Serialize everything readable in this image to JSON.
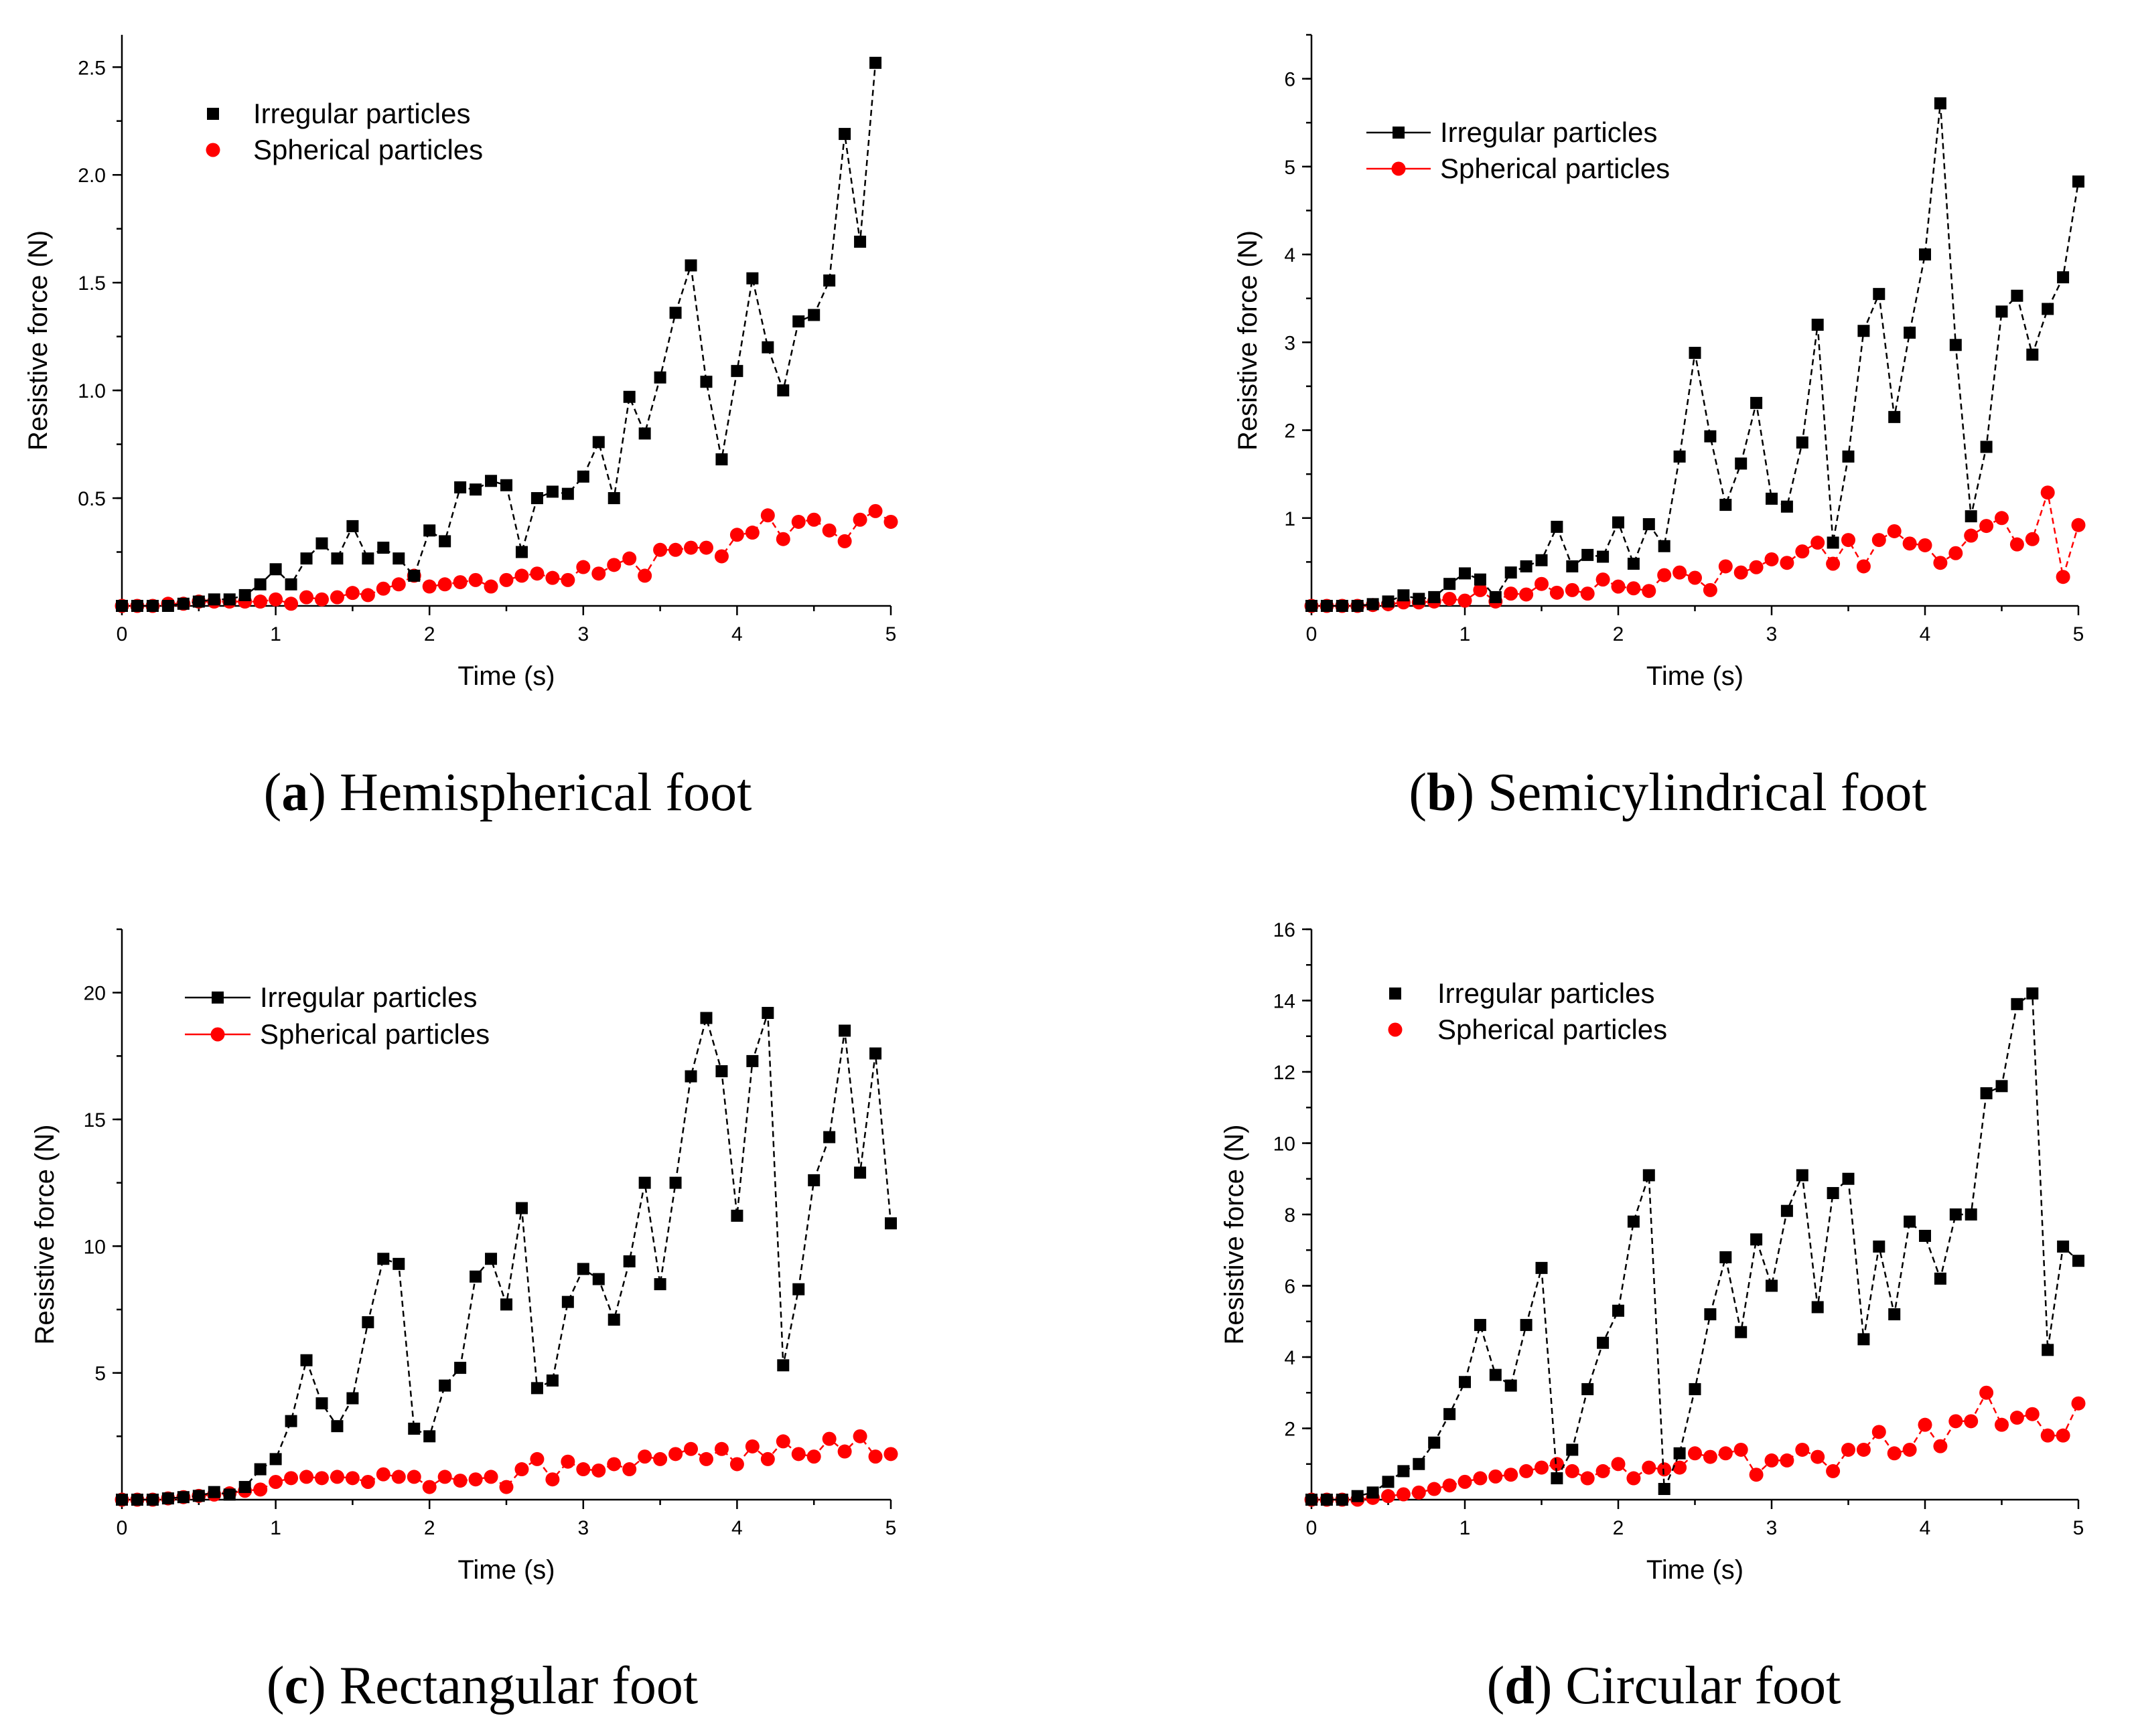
{
  "colors": {
    "irregular": "#000000",
    "spherical": "#ff0000"
  },
  "chart_data": [
    {
      "type": "line",
      "caption_letter": "a",
      "caption_rest": " Hemispherical foot",
      "title": "",
      "xlabel": "Time (s)",
      "ylabel": "Resistive force (N)",
      "xlim": [
        0,
        5
      ],
      "ylim": [
        0,
        2.65
      ],
      "xticks": [
        0,
        1,
        2,
        3,
        4,
        5
      ],
      "yticks": [
        0.5,
        1.0,
        1.5,
        2.0,
        2.5
      ],
      "yticklabels": [
        "0.5",
        "1.0",
        "1.5",
        "2.0",
        "2.5"
      ],
      "legend_position": "top-left",
      "legend_style": "marker-only",
      "x": [
        0,
        0.1,
        0.2,
        0.3,
        0.4,
        0.5,
        0.6,
        0.7,
        0.8,
        0.9,
        1.0,
        1.1,
        1.2,
        1.3,
        1.4,
        1.5,
        1.6,
        1.7,
        1.8,
        1.9,
        2.0,
        2.1,
        2.2,
        2.3,
        2.4,
        2.5,
        2.6,
        2.7,
        2.8,
        2.9,
        3.0,
        3.1,
        3.2,
        3.3,
        3.4,
        3.5,
        3.6,
        3.7,
        3.8,
        3.9,
        4.0,
        4.1,
        4.2,
        4.3,
        4.4,
        4.5,
        4.6,
        4.7,
        4.8,
        4.9,
        5.0
      ],
      "series": [
        {
          "name": "Irregular particles",
          "marker": "square",
          "color": "#000000",
          "values": [
            0,
            0,
            0,
            0,
            0.01,
            0.02,
            0.03,
            0.03,
            0.05,
            0.1,
            0.17,
            0.1,
            0.22,
            0.29,
            0.22,
            0.37,
            0.22,
            0.27,
            0.22,
            0.14,
            0.35,
            0.3,
            0.55,
            0.54,
            0.58,
            0.56,
            0.25,
            0.5,
            0.53,
            0.52,
            0.6,
            0.76,
            0.5,
            0.97,
            0.8,
            1.06,
            1.36,
            1.58,
            1.04,
            0.68,
            1.09,
            1.52,
            1.2,
            1.0,
            1.32,
            1.35,
            1.51,
            2.19,
            1.69,
            2.52,
            null
          ]
        },
        {
          "name": "Spherical particles",
          "marker": "circle",
          "color": "#ff0000",
          "values": [
            0,
            0,
            0,
            0.01,
            0.01,
            0.02,
            0.02,
            0.02,
            0.02,
            0.02,
            0.03,
            0.01,
            0.04,
            0.03,
            0.04,
            0.06,
            0.05,
            0.08,
            0.1,
            0.14,
            0.09,
            0.1,
            0.11,
            0.12,
            0.09,
            0.12,
            0.14,
            0.15,
            0.13,
            0.12,
            0.18,
            0.15,
            0.19,
            0.22,
            0.14,
            0.26,
            0.26,
            0.27,
            0.27,
            0.23,
            0.33,
            0.34,
            0.42,
            0.31,
            0.39,
            0.4,
            0.35,
            0.3,
            0.4,
            0.44,
            0.39
          ]
        }
      ]
    },
    {
      "type": "line",
      "caption_letter": "b",
      "caption_rest": " Semicylindrical foot",
      "title": "",
      "xlabel": "Time (s)",
      "ylabel": "Resistive force (N)",
      "xlim": [
        0,
        5
      ],
      "ylim": [
        0,
        6.5
      ],
      "xticks": [
        0,
        1,
        2,
        3,
        4,
        5
      ],
      "yticks": [
        1,
        2,
        3,
        4,
        5,
        6
      ],
      "yticklabels": [
        "1",
        "2",
        "3",
        "4",
        "5",
        "6"
      ],
      "legend_position": "top-left",
      "legend_style": "line-marker",
      "x": [
        0,
        0.1,
        0.2,
        0.3,
        0.4,
        0.5,
        0.6,
        0.7,
        0.8,
        0.9,
        1.0,
        1.1,
        1.2,
        1.3,
        1.4,
        1.5,
        1.6,
        1.7,
        1.8,
        1.9,
        2.0,
        2.1,
        2.2,
        2.3,
        2.4,
        2.5,
        2.6,
        2.7,
        2.8,
        2.9,
        3.0,
        3.1,
        3.2,
        3.3,
        3.4,
        3.5,
        3.6,
        3.7,
        3.8,
        3.9,
        4.0,
        4.1,
        4.2,
        4.3,
        4.4,
        4.5,
        4.6,
        4.7,
        4.8,
        4.9,
        5.0
      ],
      "series": [
        {
          "name": "Irregular particles",
          "marker": "square",
          "color": "#000000",
          "values": [
            0,
            0,
            0,
            0,
            0.02,
            0.05,
            0.12,
            0.08,
            0.1,
            0.25,
            0.37,
            0.3,
            0.1,
            0.38,
            0.45,
            0.52,
            0.9,
            0.45,
            0.58,
            0.56,
            0.95,
            0.48,
            0.93,
            0.68,
            1.7,
            2.88,
            1.93,
            1.15,
            1.62,
            2.31,
            1.22,
            1.13,
            1.86,
            3.2,
            0.72,
            1.7,
            3.13,
            3.55,
            2.15,
            3.11,
            4.0,
            5.72,
            2.97,
            1.02,
            1.81,
            3.35,
            3.53,
            2.86,
            3.38,
            3.74,
            4.83
          ]
        },
        {
          "name": "Spherical particles",
          "marker": "circle",
          "color": "#ff0000",
          "values": [
            0,
            0,
            0,
            0,
            0.01,
            0.02,
            0.04,
            0.04,
            0.05,
            0.08,
            0.06,
            0.18,
            0.05,
            0.14,
            0.13,
            0.25,
            0.15,
            0.18,
            0.14,
            0.3,
            0.22,
            0.2,
            0.17,
            0.35,
            0.38,
            0.32,
            0.18,
            0.45,
            0.38,
            0.44,
            0.53,
            0.49,
            0.62,
            0.72,
            0.48,
            0.75,
            0.45,
            0.75,
            0.85,
            0.71,
            0.69,
            0.49,
            0.6,
            0.8,
            0.91,
            1.0,
            0.7,
            0.76,
            1.29,
            0.33,
            0.92
          ]
        }
      ]
    },
    {
      "type": "line",
      "caption_letter": "c",
      "caption_rest": " Rectangular foot",
      "title": "",
      "xlabel": "Time (s)",
      "ylabel": "Resistive force (N)",
      "xlim": [
        0,
        5
      ],
      "ylim": [
        0,
        22.5
      ],
      "xticks": [
        0,
        1,
        2,
        3,
        4,
        5
      ],
      "yticks": [
        5,
        10,
        15,
        20
      ],
      "yticklabels": [
        "5",
        "10",
        "15",
        "20"
      ],
      "legend_position": "top-left",
      "legend_style": "line-marker",
      "x": [
        0,
        0.1,
        0.2,
        0.3,
        0.4,
        0.5,
        0.6,
        0.7,
        0.8,
        0.9,
        1.0,
        1.1,
        1.2,
        1.3,
        1.4,
        1.5,
        1.6,
        1.7,
        1.8,
        1.9,
        2.0,
        2.1,
        2.2,
        2.3,
        2.4,
        2.5,
        2.6,
        2.7,
        2.8,
        2.9,
        3.0,
        3.1,
        3.2,
        3.3,
        3.4,
        3.5,
        3.6,
        3.7,
        3.8,
        3.9,
        4.0,
        4.1,
        4.2,
        4.3,
        4.4,
        4.5,
        4.6,
        4.7,
        4.8,
        4.9,
        5.0
      ],
      "series": [
        {
          "name": "Irregular particles",
          "marker": "square",
          "color": "#000000",
          "values": [
            0,
            0,
            0,
            0.05,
            0.1,
            0.15,
            0.3,
            0.2,
            0.5,
            1.2,
            1.6,
            3.1,
            5.5,
            3.8,
            2.9,
            4.0,
            7.0,
            9.5,
            9.3,
            2.8,
            2.5,
            4.5,
            5.2,
            8.8,
            9.5,
            7.7,
            11.5,
            4.4,
            4.7,
            7.8,
            9.1,
            8.7,
            7.1,
            9.4,
            12.5,
            8.5,
            12.5,
            16.7,
            19.0,
            16.9,
            11.2,
            17.3,
            19.2,
            5.3,
            8.3,
            12.6,
            14.3,
            18.5,
            12.9,
            17.6,
            10.9
          ]
        },
        {
          "name": "Spherical particles",
          "marker": "circle",
          "color": "#ff0000",
          "values": [
            0,
            0,
            0,
            0.05,
            0.1,
            0.15,
            0.2,
            0.25,
            0.35,
            0.4,
            0.7,
            0.85,
            0.9,
            0.85,
            0.9,
            0.85,
            0.7,
            1.0,
            0.9,
            0.9,
            0.5,
            0.9,
            0.75,
            0.8,
            0.9,
            0.5,
            1.2,
            1.6,
            0.8,
            1.5,
            1.2,
            1.15,
            1.4,
            1.2,
            1.7,
            1.6,
            1.8,
            2.0,
            1.6,
            2.0,
            1.4,
            2.1,
            1.6,
            2.3,
            1.8,
            1.7,
            2.4,
            1.9,
            2.5,
            1.7,
            1.8
          ]
        }
      ]
    },
    {
      "type": "line",
      "caption_letter": "d",
      "caption_rest": " Circular foot",
      "title": "",
      "xlabel": "Time (s)",
      "ylabel": "Resistive force (N)",
      "xlim": [
        0,
        5
      ],
      "ylim": [
        0,
        16
      ],
      "xticks": [
        0,
        1,
        2,
        3,
        4,
        5
      ],
      "yticks": [
        2,
        4,
        6,
        8,
        10,
        12,
        14,
        16
      ],
      "yticklabels": [
        "2",
        "4",
        "6",
        "8",
        "10",
        "12",
        "14",
        "16"
      ],
      "legend_position": "top-left",
      "legend_style": "marker-only",
      "x": [
        0,
        0.1,
        0.2,
        0.3,
        0.4,
        0.5,
        0.6,
        0.7,
        0.8,
        0.9,
        1.0,
        1.1,
        1.2,
        1.3,
        1.4,
        1.5,
        1.6,
        1.7,
        1.8,
        1.9,
        2.0,
        2.1,
        2.2,
        2.3,
        2.4,
        2.5,
        2.6,
        2.7,
        2.8,
        2.9,
        3.0,
        3.1,
        3.2,
        3.3,
        3.4,
        3.5,
        3.6,
        3.7,
        3.8,
        3.9,
        4.0,
        4.1,
        4.2,
        4.3,
        4.4,
        4.5,
        4.6,
        4.7,
        4.8,
        4.9,
        5.0
      ],
      "series": [
        {
          "name": "Irregular particles",
          "marker": "square",
          "color": "#000000",
          "values": [
            0,
            0,
            0,
            0.1,
            0.2,
            0.5,
            0.8,
            1.0,
            1.6,
            2.4,
            3.3,
            4.9,
            3.5,
            3.2,
            4.9,
            6.5,
            0.6,
            1.4,
            3.1,
            4.4,
            5.3,
            7.8,
            9.1,
            0.3,
            1.3,
            3.1,
            5.2,
            6.8,
            4.7,
            7.3,
            6.0,
            8.1,
            9.1,
            5.4,
            8.6,
            9.0,
            4.5,
            7.1,
            5.2,
            7.8,
            7.4,
            6.2,
            8.0,
            8.0,
            11.4,
            11.6,
            13.9,
            14.2,
            4.2,
            7.1,
            6.7
          ]
        },
        {
          "name": "Spherical particles",
          "marker": "circle",
          "color": "#ff0000",
          "values": [
            0,
            0,
            0,
            0,
            0.05,
            0.1,
            0.15,
            0.2,
            0.3,
            0.4,
            0.5,
            0.6,
            0.65,
            0.7,
            0.8,
            0.9,
            1.0,
            0.8,
            0.6,
            0.8,
            1.0,
            0.6,
            0.9,
            0.85,
            0.9,
            1.3,
            1.2,
            1.3,
            1.4,
            0.7,
            1.1,
            1.1,
            1.4,
            1.2,
            0.8,
            1.4,
            1.4,
            1.9,
            1.3,
            1.4,
            2.1,
            1.5,
            2.2,
            2.2,
            3.0,
            2.1,
            2.3,
            2.4,
            1.8,
            1.8,
            2.7
          ]
        }
      ]
    }
  ]
}
